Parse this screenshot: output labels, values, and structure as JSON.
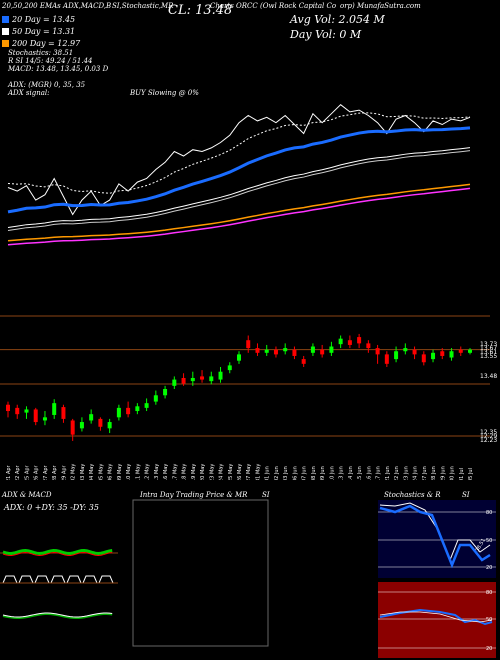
{
  "header": {
    "left_title": "20,50,200 EMAs",
    "left_title2": "ADX,MACD,B",
    "mid_title": "SI,Stochastic,MR",
    "cl_label": "CL: 13.48",
    "chart_label": "Charts ORCC",
    "company": "(Owl Rock Capital Co",
    "site": "orp) MunafaSutra.com",
    "avg_vol": "Avg Vol: 2.054  M",
    "day_vol": "Day Vol: 0  M"
  },
  "ema_lines": [
    {
      "label": "20  Day = 13.45",
      "color": "#ffffff"
    },
    {
      "label": "50  Day = 13.31",
      "color": "#ffffff"
    },
    {
      "label": "200  Day = 12.97",
      "color": "#ffffff"
    }
  ],
  "stats": {
    "stochastics": "Stochastics: 38.51",
    "rsi": "R          SI 14/5: 49.24  / 51.44",
    "macd": "MACD: 13.48,  13.45, 0.03  D",
    "adx": "ADX:                      (MGR) 0,  35,  35",
    "adx_signal": "ADX  signal:",
    "buy_slowing": "BUY Slowing @ 0%"
  },
  "price_axis": {
    "labels": [
      "13.73",
      "13.48",
      "12.23",
      "12.23"
    ],
    "top_stack_labels": [
      "13.73",
      "13.67",
      "13.61",
      "13.55"
    ],
    "bottom_stack_labels": [
      "12.35",
      "12.29",
      "12.23"
    ]
  },
  "chart_data": {
    "type": "candlestick",
    "dates": [
      "21 Apr",
      "22 Apr",
      "25 Apr",
      "26 Apr",
      "27 Apr",
      "28 Apr",
      "29 Apr",
      "02 May",
      "03 May",
      "04 May",
      "05 May",
      "06 May",
      "09 May",
      "10 May",
      "11 May",
      "12 May",
      "13 May",
      "16 May",
      "17 May",
      "18 May",
      "19 May",
      "20 May",
      "23 May",
      "24 May",
      "25 May",
      "26 May",
      "27 May",
      "31 May",
      "01 Jun",
      "02 Jun",
      "03 Jun",
      "06 Jun",
      "07 Jun",
      "08 Jun",
      "09 Jun",
      "10 Jun",
      "13 Jun",
      "14 Jun",
      "15 Jun",
      "16 Jun",
      "17 Jun",
      "21 Jun",
      "22 Jun",
      "23 Jun",
      "24 Jun",
      "27 Jun",
      "28 Jun",
      "29 Jun",
      "30 Jun",
      "01 Jul",
      "05 Jul"
    ],
    "candles": [
      {
        "o": 12.78,
        "c": 12.7,
        "h": 12.82,
        "l": 12.62
      },
      {
        "o": 12.74,
        "c": 12.66,
        "h": 12.78,
        "l": 12.6
      },
      {
        "o": 12.68,
        "c": 12.72,
        "h": 12.76,
        "l": 12.6
      },
      {
        "o": 12.72,
        "c": 12.56,
        "h": 12.74,
        "l": 12.52
      },
      {
        "o": 12.58,
        "c": 12.62,
        "h": 12.7,
        "l": 12.52
      },
      {
        "o": 12.65,
        "c": 12.8,
        "h": 12.85,
        "l": 12.6
      },
      {
        "o": 12.75,
        "c": 12.6,
        "h": 12.78,
        "l": 12.55
      },
      {
        "o": 12.58,
        "c": 12.4,
        "h": 12.6,
        "l": 12.32
      },
      {
        "o": 12.48,
        "c": 12.56,
        "h": 12.62,
        "l": 12.44
      },
      {
        "o": 12.58,
        "c": 12.66,
        "h": 12.72,
        "l": 12.54
      },
      {
        "o": 12.6,
        "c": 12.5,
        "h": 12.62,
        "l": 12.45
      },
      {
        "o": 12.48,
        "c": 12.56,
        "h": 12.6,
        "l": 12.42
      },
      {
        "o": 12.62,
        "c": 12.74,
        "h": 12.78,
        "l": 12.58
      },
      {
        "o": 12.74,
        "c": 12.66,
        "h": 12.82,
        "l": 12.62
      },
      {
        "o": 12.7,
        "c": 12.76,
        "h": 12.8,
        "l": 12.66
      },
      {
        "o": 12.74,
        "c": 12.8,
        "h": 12.86,
        "l": 12.7
      },
      {
        "o": 12.82,
        "c": 12.9,
        "h": 12.96,
        "l": 12.78
      },
      {
        "o": 12.9,
        "c": 12.98,
        "h": 13.02,
        "l": 12.86
      },
      {
        "o": 13.02,
        "c": 13.1,
        "h": 13.14,
        "l": 12.98
      },
      {
        "o": 13.12,
        "c": 13.05,
        "h": 13.18,
        "l": 13.02
      },
      {
        "o": 13.08,
        "c": 13.12,
        "h": 13.2,
        "l": 13.02
      },
      {
        "o": 13.14,
        "c": 13.1,
        "h": 13.22,
        "l": 13.06
      },
      {
        "o": 13.08,
        "c": 13.14,
        "h": 13.2,
        "l": 13.04
      },
      {
        "o": 13.1,
        "c": 13.2,
        "h": 13.26,
        "l": 13.06
      },
      {
        "o": 13.22,
        "c": 13.28,
        "h": 13.32,
        "l": 13.18
      },
      {
        "o": 13.34,
        "c": 13.42,
        "h": 13.46,
        "l": 13.3
      },
      {
        "o": 13.6,
        "c": 13.5,
        "h": 13.66,
        "l": 13.44
      },
      {
        "o": 13.5,
        "c": 13.44,
        "h": 13.56,
        "l": 13.4
      },
      {
        "o": 13.44,
        "c": 13.48,
        "h": 13.54,
        "l": 13.4
      },
      {
        "o": 13.48,
        "c": 13.42,
        "h": 13.52,
        "l": 13.38
      },
      {
        "o": 13.46,
        "c": 13.5,
        "h": 13.56,
        "l": 13.42
      },
      {
        "o": 13.48,
        "c": 13.4,
        "h": 13.52,
        "l": 13.36
      },
      {
        "o": 13.36,
        "c": 13.3,
        "h": 13.4,
        "l": 13.26
      },
      {
        "o": 13.44,
        "c": 13.52,
        "h": 13.56,
        "l": 13.4
      },
      {
        "o": 13.48,
        "c": 13.42,
        "h": 13.54,
        "l": 13.38
      },
      {
        "o": 13.44,
        "c": 13.52,
        "h": 13.58,
        "l": 13.4
      },
      {
        "o": 13.55,
        "c": 13.62,
        "h": 13.66,
        "l": 13.5
      },
      {
        "o": 13.6,
        "c": 13.54,
        "h": 13.66,
        "l": 13.5
      },
      {
        "o": 13.64,
        "c": 13.56,
        "h": 13.68,
        "l": 13.5
      },
      {
        "o": 13.56,
        "c": 13.5,
        "h": 13.6,
        "l": 13.44
      },
      {
        "o": 13.5,
        "c": 13.42,
        "h": 13.54,
        "l": 13.3
      },
      {
        "o": 13.42,
        "c": 13.3,
        "h": 13.46,
        "l": 13.26
      },
      {
        "o": 13.36,
        "c": 13.46,
        "h": 13.52,
        "l": 13.32
      },
      {
        "o": 13.46,
        "c": 13.5,
        "h": 13.56,
        "l": 13.42
      },
      {
        "o": 13.48,
        "c": 13.42,
        "h": 13.52,
        "l": 13.36
      },
      {
        "o": 13.42,
        "c": 13.32,
        "h": 13.46,
        "l": 13.28
      },
      {
        "o": 13.36,
        "c": 13.44,
        "h": 13.48,
        "l": 13.32
      },
      {
        "o": 13.46,
        "c": 13.4,
        "h": 13.5,
        "l": 13.36
      },
      {
        "o": 13.38,
        "c": 13.46,
        "h": 13.5,
        "l": 13.34
      },
      {
        "o": 13.48,
        "c": 13.44,
        "h": 13.52,
        "l": 13.4
      },
      {
        "o": 13.44,
        "c": 13.48,
        "h": 13.5,
        "l": 13.42
      }
    ],
    "ylim": [
      12.23,
      13.73
    ],
    "colors": {
      "up": "#00ff00",
      "down": "#ff0000",
      "ema20": "#1a6cff",
      "ema50": "#ffffff",
      "ema200": "#ff9900"
    }
  },
  "bottom_panels": {
    "adx_title": "ADX  & MACD",
    "adx_values": "ADX: 0  +DY: 35 -DY: 35",
    "intra_title": "Intra  Day Trading Price  & MR",
    "intra_si": "SI",
    "stoch_title": "Stochastics & R",
    "stoch_si": "SI",
    "stoch_levels": [
      "80",
      "50",
      "20"
    ],
    "rsi_levels": [
      "80",
      "50",
      "20"
    ],
    "stoch_value": "38.51"
  }
}
